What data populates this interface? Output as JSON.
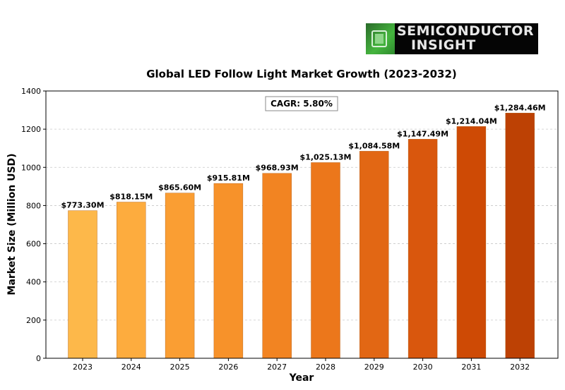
{
  "logo": {
    "line1": "SEMICONDUCTOR",
    "line2": "INSIGHT"
  },
  "chart_data": {
    "type": "bar",
    "title": "Global LED Follow Light Market Growth (2023-2032)",
    "xlabel": "Year",
    "ylabel": "Market Size (Million USD)",
    "ylim": [
      0,
      1400
    ],
    "yticks": [
      0,
      200,
      400,
      600,
      800,
      1000,
      1200,
      1400
    ],
    "grid": true,
    "annotation": "CAGR: 5.80%",
    "categories": [
      "2023",
      "2024",
      "2025",
      "2026",
      "2027",
      "2028",
      "2029",
      "2030",
      "2031",
      "2032"
    ],
    "values": [
      773.3,
      818.15,
      865.6,
      915.81,
      968.93,
      1025.13,
      1084.58,
      1147.49,
      1214.04,
      1284.46
    ],
    "data_labels": [
      "$773.30M",
      "$818.15M",
      "$865.60M",
      "$915.81M",
      "$968.93M",
      "$1,025.13M",
      "$1,084.58M",
      "$1,147.49M",
      "$1,214.04M",
      "$1,284.46M"
    ],
    "colors": [
      "#FDB84A",
      "#FDAC3E",
      "#FA9E33",
      "#F7922A",
      "#F28422",
      "#EC771B",
      "#E26714",
      "#D9570D",
      "#CE4A05",
      "#BD4104"
    ]
  }
}
